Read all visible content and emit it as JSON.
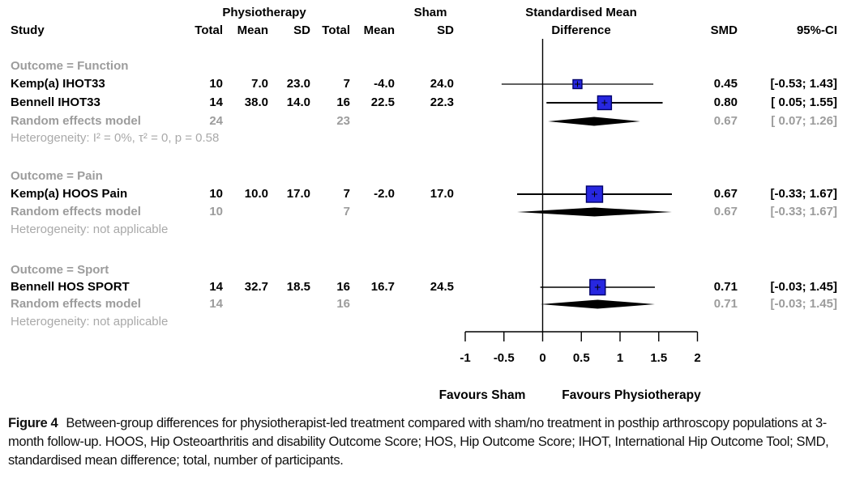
{
  "header": {
    "study": "Study",
    "physiotherapy": "Physiotherapy",
    "sham": "Sham",
    "smd_title_line1": "Standardised Mean",
    "smd_title_line2": "Difference",
    "total": "Total",
    "mean": "Mean",
    "sd": "SD",
    "smd": "SMD",
    "ci": "95%-CI"
  },
  "chart_data": {
    "type": "forest",
    "title": "Standardised Mean Difference",
    "x_axis": {
      "range": [
        -1,
        2
      ],
      "ticks": [
        -1,
        -0.5,
        0,
        0.5,
        1,
        1.5,
        2
      ],
      "tick_labels": [
        "-1",
        "-0.5",
        "0",
        "0.5",
        "1",
        "1.5",
        "2"
      ],
      "zero_line": 0
    },
    "favours_left": "Favours Sham",
    "favours_right": "Favours Physiotherapy",
    "colors": {
      "marker_fill": "#2727e0",
      "marker_stroke": "#00006a",
      "summary_fill": "#000000",
      "muted_text": "#9c9c9c"
    },
    "groups": [
      {
        "label": "Outcome = Function",
        "studies": [
          {
            "study": "Kemp(a) IHOT33",
            "physio_total": "10",
            "physio_mean": "7.0",
            "physio_sd": "23.0",
            "sham_total": "7",
            "sham_mean": "-4.0",
            "sham_sd": "24.0",
            "smd": 0.45,
            "ci_low": -0.53,
            "ci_high": 1.43,
            "smd_label": "0.45",
            "ci_label": "[-0.53; 1.43]"
          },
          {
            "study": "Bennell IHOT33",
            "physio_total": "14",
            "physio_mean": "38.0",
            "physio_sd": "14.0",
            "sham_total": "16",
            "sham_mean": "22.5",
            "sham_sd": "22.3",
            "smd": 0.8,
            "ci_low": 0.05,
            "ci_high": 1.55,
            "smd_label": "0.80",
            "ci_label": "[ 0.05; 1.55]"
          }
        ],
        "random_effects": {
          "label": "Random effects model",
          "physio_total": "24",
          "sham_total": "23",
          "smd": 0.67,
          "ci_low": 0.07,
          "ci_high": 1.26,
          "smd_label": "0.67",
          "ci_label": "[ 0.07; 1.26]"
        },
        "heterogeneity": "Heterogeneity: I² = 0%, τ² = 0, p = 0.58"
      },
      {
        "label": "Outcome = Pain",
        "studies": [
          {
            "study": "Kemp(a) HOOS Pain",
            "physio_total": "10",
            "physio_mean": "10.0",
            "physio_sd": "17.0",
            "sham_total": "7",
            "sham_mean": "-2.0",
            "sham_sd": "17.0",
            "smd": 0.67,
            "ci_low": -0.33,
            "ci_high": 1.67,
            "smd_label": "0.67",
            "ci_label": "[-0.33; 1.67]"
          }
        ],
        "random_effects": {
          "label": "Random effects model",
          "physio_total": "10",
          "sham_total": "7",
          "smd": 0.67,
          "ci_low": -0.33,
          "ci_high": 1.67,
          "smd_label": "0.67",
          "ci_label": "[-0.33; 1.67]"
        },
        "heterogeneity": "Heterogeneity: not applicable"
      },
      {
        "label": "Outcome = Sport",
        "studies": [
          {
            "study": "Bennell HOS SPORT",
            "physio_total": "14",
            "physio_mean": "32.7",
            "physio_sd": "18.5",
            "sham_total": "16",
            "sham_mean": "16.7",
            "sham_sd": "24.5",
            "smd": 0.71,
            "ci_low": -0.03,
            "ci_high": 1.45,
            "smd_label": "0.71",
            "ci_label": "[-0.03; 1.45]"
          }
        ],
        "random_effects": {
          "label": "Random effects model",
          "physio_total": "14",
          "sham_total": "16",
          "smd": 0.71,
          "ci_low": -0.03,
          "ci_high": 1.45,
          "smd_label": "0.71",
          "ci_label": "[-0.03; 1.45]"
        },
        "heterogeneity": "Heterogeneity: not applicable"
      }
    ]
  },
  "caption": {
    "label": "Figure 4",
    "text": "Between-group differences for physiotherapist-led treatment compared with sham/no treatment in posthip arthroscopy populations at 3-month follow-up. HOOS, Hip Osteoarthritis and disability Outcome Score; HOS, Hip Outcome Score; IHOT, International Hip Outcome Tool; SMD, standardised mean difference; total, number of participants."
  }
}
